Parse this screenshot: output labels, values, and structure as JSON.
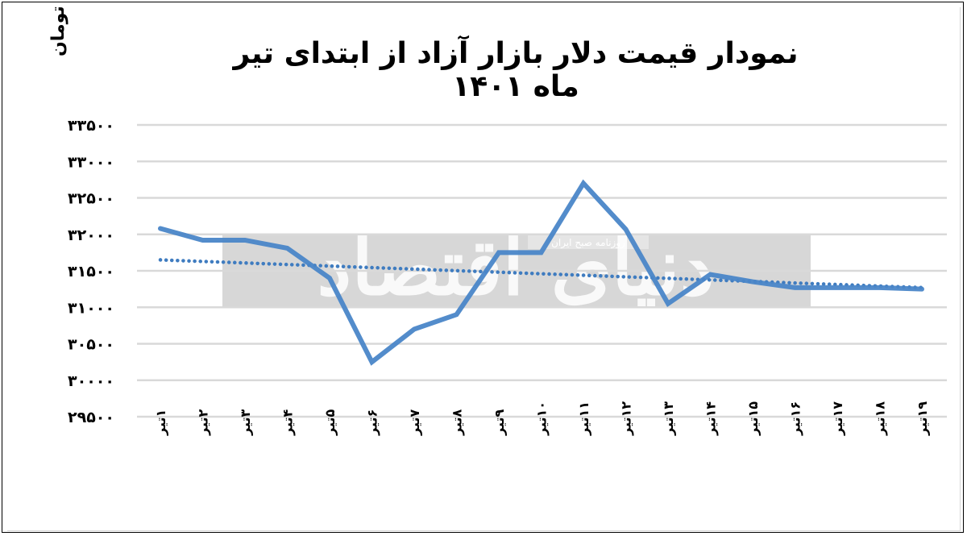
{
  "title": "نمودار  قیمت دلار بازار آزاد از ابتدای تیر ماه ۱۴۰۱",
  "y_axis_unit": "تومان",
  "watermark": {
    "main": "دنیای اقتصاد",
    "sub": "روزنامه صبح ایران"
  },
  "colors": {
    "series": "#4a86c8",
    "trendline": "#3f7cc0",
    "grid": "#d9d9d9",
    "watermark_band": "#bdbdbd"
  },
  "chart_data": {
    "type": "line",
    "title": "نمودار  قیمت دلار بازار آزاد از ابتدای تیر ماه ۱۴۰۱",
    "xlabel": "",
    "ylabel": "تومان",
    "ylim": [
      29500,
      33500
    ],
    "y_ticks": [
      29500,
      30000,
      30500,
      31000,
      31500,
      32000,
      32500,
      33000,
      33500
    ],
    "y_tick_labels": [
      "۲۹۵۰۰",
      "۳۰۰۰۰",
      "۳۰۵۰۰",
      "۳۱۰۰۰",
      "۳۱۵۰۰",
      "۳۲۰۰۰",
      "۳۲۵۰۰",
      "۳۳۰۰۰",
      "۳۳۵۰۰"
    ],
    "grid": true,
    "legend": "none",
    "categories": [
      "۱تیر",
      "۲تیر",
      "۳تیر",
      "۴تیر",
      "۵تیر",
      "۶تیر",
      "۷تیر",
      "۸تیر",
      "۹تیر",
      "۱۰تیر",
      "۱۱تیر",
      "۱۲تیر",
      "۱۳تیر",
      "۱۴تیر",
      "۱۵تیر",
      "۱۶تیر",
      "۱۷تیر",
      "۱۸تیر",
      "۱۹تیر"
    ],
    "series": [
      {
        "name": "قیمت دلار بازار آزاد",
        "style": "solid",
        "values": [
          32080,
          31920,
          31920,
          31810,
          31400,
          30250,
          30700,
          30900,
          31750,
          31750,
          32700,
          32070,
          31050,
          31450,
          31350,
          31270,
          31270,
          31270,
          31250
        ]
      },
      {
        "name": "خط روند",
        "style": "dotted",
        "type": "linear-trendline",
        "values": [
          31650,
          31270
        ]
      }
    ]
  }
}
